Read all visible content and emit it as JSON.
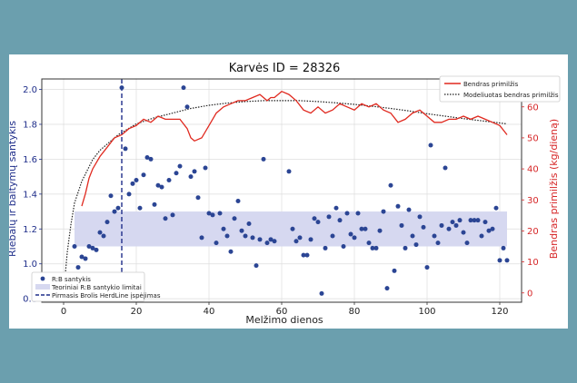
{
  "chart_data": {
    "type": "scatter+line",
    "title": "Karvės ID = 28326",
    "xlabel": "Melžimo dienos",
    "ylabel_left": "Riebalų ir baltymų santykis",
    "ylabel_right": "Bendras primilžis (kg/dieną)",
    "xlim": [
      -6,
      126
    ],
    "ylim_left": [
      0.78,
      2.06
    ],
    "ylim_right": [
      -3,
      69
    ],
    "x_ticks": [
      0,
      20,
      40,
      60,
      80,
      100,
      120
    ],
    "y_left_ticks": [
      0.8,
      1.0,
      1.2,
      1.4,
      1.6,
      1.8,
      2.0
    ],
    "y_right_ticks": [
      0,
      10,
      20,
      30,
      40,
      50,
      60
    ],
    "grid": true,
    "legend_left_position": "lower-left",
    "legend_right_position": "upper-right",
    "colors": {
      "title": "#111111",
      "left_axis": "#1f2e8a",
      "right_axis": "#d62728",
      "ratio_points": "#2b4594",
      "band_fill": "#d6d8f0",
      "milk_line": "#e0291f",
      "model_line": "#222222",
      "alert_line": "#1f2e8a",
      "grid": "#dddddd"
    },
    "limits_band": {
      "lower": 1.1,
      "upper": 1.3,
      "x_start": 3,
      "x_end": 122
    },
    "alert_day": 16,
    "series": [
      {
        "name": "R:B santykis",
        "kind": "scatter",
        "axis": "left",
        "points": [
          [
            3,
            1.1
          ],
          [
            4,
            0.98
          ],
          [
            5,
            1.04
          ],
          [
            6,
            1.03
          ],
          [
            7,
            1.1
          ],
          [
            8,
            1.09
          ],
          [
            9,
            1.08
          ],
          [
            10,
            1.18
          ],
          [
            11,
            1.16
          ],
          [
            12,
            1.24
          ],
          [
            13,
            1.39
          ],
          [
            14,
            1.3
          ],
          [
            15,
            1.32
          ],
          [
            16,
            2.01
          ],
          [
            17,
            1.66
          ],
          [
            18,
            1.4
          ],
          [
            19,
            1.46
          ],
          [
            20,
            1.48
          ],
          [
            21,
            1.32
          ],
          [
            22,
            1.51
          ],
          [
            23,
            1.61
          ],
          [
            24,
            1.6
          ],
          [
            25,
            1.34
          ],
          [
            26,
            1.45
          ],
          [
            27,
            1.44
          ],
          [
            28,
            1.26
          ],
          [
            29,
            1.48
          ],
          [
            30,
            1.28
          ],
          [
            31,
            1.52
          ],
          [
            32,
            1.56
          ],
          [
            33,
            2.01
          ],
          [
            34,
            1.9
          ],
          [
            35,
            1.5
          ],
          [
            36,
            1.53
          ],
          [
            37,
            1.38
          ],
          [
            38,
            1.15
          ],
          [
            39,
            1.55
          ],
          [
            40,
            1.29
          ],
          [
            41,
            1.28
          ],
          [
            42,
            1.12
          ],
          [
            43,
            1.29
          ],
          [
            44,
            1.2
          ],
          [
            45,
            1.16
          ],
          [
            46,
            1.07
          ],
          [
            47,
            1.26
          ],
          [
            48,
            1.36
          ],
          [
            49,
            1.19
          ],
          [
            50,
            1.16
          ],
          [
            51,
            1.23
          ],
          [
            52,
            1.15
          ],
          [
            53,
            0.99
          ],
          [
            54,
            1.14
          ],
          [
            55,
            1.6
          ],
          [
            56,
            1.12
          ],
          [
            57,
            1.14
          ],
          [
            58,
            1.13
          ],
          [
            62,
            1.53
          ],
          [
            63,
            1.2
          ],
          [
            64,
            1.13
          ],
          [
            65,
            1.15
          ],
          [
            66,
            1.05
          ],
          [
            67,
            1.05
          ],
          [
            68,
            1.14
          ],
          [
            69,
            1.26
          ],
          [
            70,
            1.24
          ],
          [
            71,
            0.83
          ],
          [
            72,
            1.09
          ],
          [
            73,
            1.27
          ],
          [
            74,
            1.16
          ],
          [
            75,
            1.32
          ],
          [
            76,
            1.25
          ],
          [
            77,
            1.1
          ],
          [
            78,
            1.29
          ],
          [
            79,
            1.17
          ],
          [
            80,
            1.15
          ],
          [
            81,
            1.29
          ],
          [
            82,
            1.2
          ],
          [
            83,
            1.2
          ],
          [
            84,
            1.12
          ],
          [
            85,
            1.09
          ],
          [
            86,
            1.09
          ],
          [
            87,
            1.19
          ],
          [
            88,
            1.3
          ],
          [
            89,
            0.86
          ],
          [
            90,
            1.45
          ],
          [
            91,
            0.96
          ],
          [
            92,
            1.33
          ],
          [
            93,
            1.22
          ],
          [
            94,
            1.09
          ],
          [
            95,
            1.31
          ],
          [
            96,
            1.16
          ],
          [
            97,
            1.11
          ],
          [
            98,
            1.27
          ],
          [
            99,
            1.21
          ],
          [
            100,
            0.98
          ],
          [
            101,
            1.68
          ],
          [
            102,
            1.16
          ],
          [
            103,
            1.12
          ],
          [
            104,
            1.22
          ],
          [
            105,
            1.55
          ],
          [
            106,
            1.2
          ],
          [
            107,
            1.24
          ],
          [
            108,
            1.22
          ],
          [
            109,
            1.25
          ],
          [
            110,
            1.18
          ],
          [
            111,
            1.12
          ],
          [
            112,
            1.25
          ],
          [
            113,
            1.25
          ],
          [
            114,
            1.25
          ],
          [
            115,
            1.16
          ],
          [
            116,
            1.24
          ],
          [
            117,
            1.19
          ],
          [
            118,
            1.2
          ],
          [
            119,
            1.32
          ],
          [
            120,
            1.02
          ],
          [
            121,
            1.09
          ],
          [
            122,
            1.02
          ]
        ]
      },
      {
        "name": "Teoriniai R:B santykio limitai",
        "kind": "band",
        "axis": "left"
      },
      {
        "name": "Pirmasis Brolis HerdLine įspėjimas",
        "kind": "vline",
        "axis": "left"
      },
      {
        "name": "Bendras primilžis",
        "kind": "line",
        "axis": "right",
        "points": [
          [
            5,
            28
          ],
          [
            6,
            32
          ],
          [
            7,
            37
          ],
          [
            8,
            40
          ],
          [
            10,
            44
          ],
          [
            12,
            47
          ],
          [
            14,
            50
          ],
          [
            16,
            51
          ],
          [
            18,
            53
          ],
          [
            20,
            54
          ],
          [
            22,
            56
          ],
          [
            24,
            55
          ],
          [
            26,
            57
          ],
          [
            28,
            56
          ],
          [
            30,
            56
          ],
          [
            32,
            56
          ],
          [
            34,
            53
          ],
          [
            35,
            50
          ],
          [
            36,
            49
          ],
          [
            38,
            50
          ],
          [
            40,
            54
          ],
          [
            42,
            58
          ],
          [
            44,
            60
          ],
          [
            46,
            61
          ],
          [
            48,
            62
          ],
          [
            50,
            62
          ],
          [
            52,
            63
          ],
          [
            54,
            64
          ],
          [
            56,
            62
          ],
          [
            57,
            63
          ],
          [
            58,
            63
          ],
          [
            60,
            65
          ],
          [
            62,
            64
          ],
          [
            64,
            62
          ],
          [
            66,
            59
          ],
          [
            68,
            58
          ],
          [
            70,
            60
          ],
          [
            72,
            58
          ],
          [
            74,
            59
          ],
          [
            76,
            61
          ],
          [
            78,
            60
          ],
          [
            80,
            59
          ],
          [
            82,
            61
          ],
          [
            84,
            60
          ],
          [
            86,
            61
          ],
          [
            88,
            59
          ],
          [
            90,
            58
          ],
          [
            92,
            55
          ],
          [
            94,
            56
          ],
          [
            96,
            58
          ],
          [
            98,
            59
          ],
          [
            100,
            57
          ],
          [
            102,
            55
          ],
          [
            104,
            55
          ],
          [
            106,
            56
          ],
          [
            108,
            56
          ],
          [
            110,
            57
          ],
          [
            112,
            56
          ],
          [
            114,
            57
          ],
          [
            116,
            56
          ],
          [
            118,
            55
          ],
          [
            120,
            54
          ],
          [
            122,
            51
          ]
        ]
      },
      {
        "name": "Modeliuotas bendras primilžis",
        "kind": "line-dotted",
        "axis": "right",
        "points": [
          [
            0,
            0
          ],
          [
            1,
            13
          ],
          [
            2,
            22
          ],
          [
            3,
            29
          ],
          [
            5,
            36
          ],
          [
            8,
            43
          ],
          [
            10,
            46
          ],
          [
            15,
            51
          ],
          [
            20,
            54.5
          ],
          [
            25,
            56.5
          ],
          [
            30,
            58
          ],
          [
            35,
            59.5
          ],
          [
            40,
            60.5
          ],
          [
            45,
            61.2
          ],
          [
            50,
            61.7
          ],
          [
            55,
            62
          ],
          [
            60,
            62
          ],
          [
            65,
            62
          ],
          [
            70,
            61.7
          ],
          [
            75,
            61.3
          ],
          [
            80,
            60.8
          ],
          [
            85,
            60.2
          ],
          [
            90,
            59.5
          ],
          [
            95,
            58.7
          ],
          [
            100,
            57.8
          ],
          [
            105,
            57
          ],
          [
            110,
            56.2
          ],
          [
            115,
            55.5
          ],
          [
            120,
            54.8
          ],
          [
            122,
            54.5
          ]
        ]
      }
    ]
  }
}
